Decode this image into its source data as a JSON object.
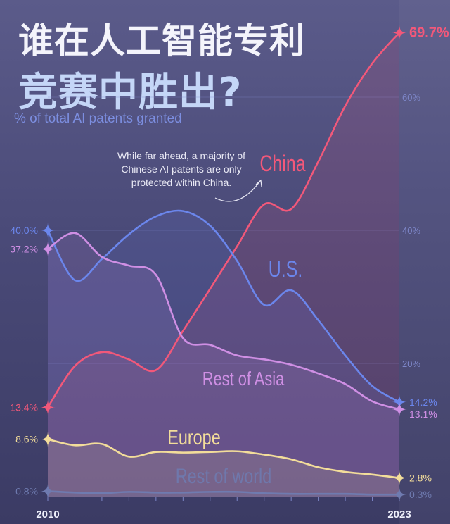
{
  "title_line1": "谁在人工智能专利",
  "title_line2": "竞赛中胜出?",
  "subtitle": "% of total AI patents granted",
  "annotation": "While far ahead, a majority of Chinese AI patents are only protected within China.",
  "chart_data": {
    "type": "line",
    "x": [
      2010,
      2011,
      2012,
      2013,
      2014,
      2015,
      2016,
      2017,
      2018,
      2019,
      2020,
      2021,
      2022,
      2023
    ],
    "x_tick_labels": [
      "2010",
      "2023"
    ],
    "y_tick_labels": [
      "20%",
      "40%",
      "60%"
    ],
    "ylim": [
      0,
      70
    ],
    "grid": true,
    "series": [
      {
        "name": "China",
        "color": "#f2587a",
        "values": [
          13.4,
          19.6,
          21.7,
          20.6,
          19.0,
          24.9,
          31.2,
          37.6,
          43.9,
          43.2,
          50.3,
          58.7,
          65.1,
          69.7
        ],
        "start_label": "13.4%",
        "end_label": "69.7%"
      },
      {
        "name": "U.S.",
        "color": "#6b86ec",
        "values": [
          40.0,
          32.5,
          35.7,
          39.4,
          42.1,
          42.9,
          40.7,
          35.4,
          28.8,
          31.0,
          26.5,
          21.2,
          16.6,
          14.2
        ],
        "start_label": "40.0%",
        "end_label": "14.2%"
      },
      {
        "name": "Rest of Asia",
        "color": "#cf8fe4",
        "values": [
          37.2,
          39.6,
          36.0,
          34.7,
          33.3,
          23.8,
          22.8,
          21.2,
          20.6,
          19.8,
          18.5,
          16.9,
          14.3,
          13.1
        ],
        "start_label": "37.2%",
        "end_label": "13.1%"
      },
      {
        "name": "Europe",
        "color": "#f3dd9a",
        "values": [
          8.6,
          7.7,
          7.9,
          6.0,
          6.7,
          6.6,
          6.7,
          6.8,
          6.3,
          5.6,
          4.4,
          3.7,
          3.3,
          2.8
        ],
        "start_label": "8.6%",
        "end_label": "2.8%"
      },
      {
        "name": "Rest of world",
        "color": "#6f7bb0",
        "values": [
          0.8,
          0.6,
          0.5,
          0.7,
          0.6,
          0.6,
          0.7,
          0.7,
          0.5,
          0.4,
          0.4,
          0.4,
          0.3,
          0.3
        ],
        "start_label": "0.8%",
        "end_label": "0.3%"
      }
    ]
  }
}
